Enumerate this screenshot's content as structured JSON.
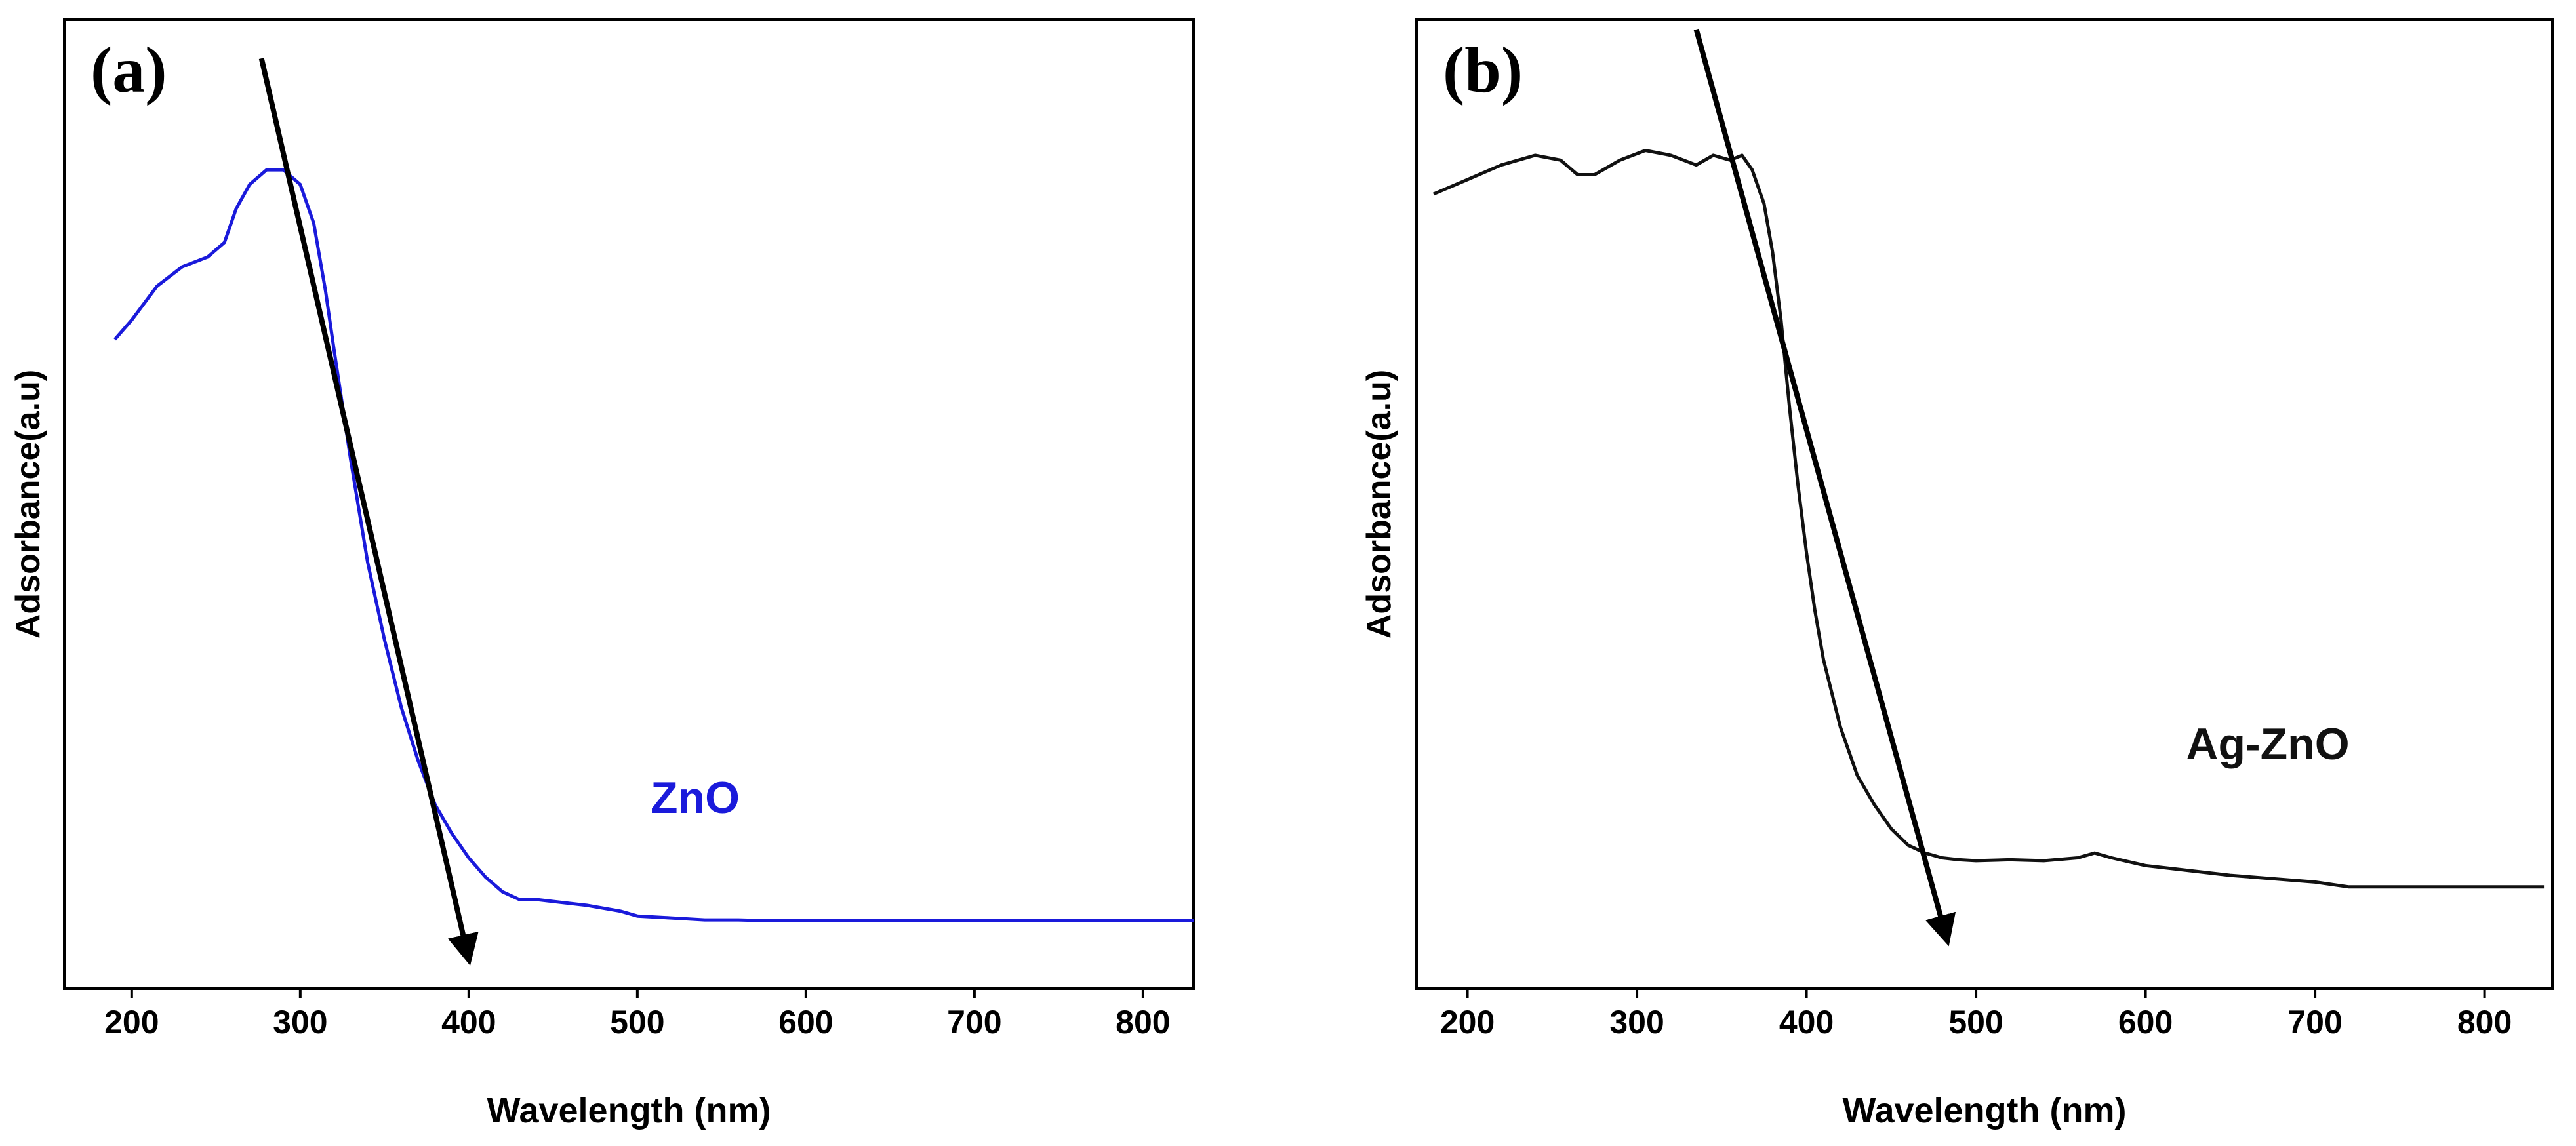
{
  "chart_data": [
    {
      "panel_label": "(a)",
      "type": "line",
      "xlabel": "Wavelength (nm)",
      "ylabel": "Adsorbance(a.u)",
      "xlim": [
        160,
        830
      ],
      "ylim": [
        0,
        1
      ],
      "xticks": [
        200,
        300,
        400,
        500,
        600,
        700,
        800
      ],
      "series": [
        {
          "name": "ZnO",
          "color": "#1a1adb",
          "x": [
            190,
            200,
            215,
            230,
            245,
            255,
            262,
            270,
            280,
            290,
            300,
            308,
            315,
            320,
            330,
            340,
            350,
            360,
            370,
            380,
            390,
            400,
            410,
            420,
            430,
            440,
            450,
            470,
            490,
            500,
            520,
            540,
            560,
            580,
            600,
            650,
            700,
            750,
            800,
            830
          ],
          "y": [
            0.67,
            0.69,
            0.725,
            0.745,
            0.755,
            0.77,
            0.805,
            0.83,
            0.845,
            0.845,
            0.83,
            0.79,
            0.72,
            0.66,
            0.545,
            0.44,
            0.36,
            0.29,
            0.235,
            0.19,
            0.16,
            0.135,
            0.115,
            0.1,
            0.092,
            0.092,
            0.09,
            0.086,
            0.08,
            0.075,
            0.073,
            0.071,
            0.071,
            0.07,
            0.07,
            0.07,
            0.07,
            0.07,
            0.07,
            0.07
          ]
        }
      ],
      "arrow": {
        "from": [
          277,
          0.96
        ],
        "to": [
          400,
          0.03
        ]
      }
    },
    {
      "panel_label": "(b)",
      "type": "line",
      "xlabel": "Wavelength (nm)",
      "ylabel": "Adsorbance(a.u)",
      "xlim": [
        170,
        840
      ],
      "ylim": [
        0,
        1
      ],
      "xticks": [
        200,
        300,
        400,
        500,
        600,
        700,
        800
      ],
      "series": [
        {
          "name": "Ag-ZnO",
          "color": "#111111",
          "x": [
            180,
            200,
            220,
            240,
            255,
            265,
            275,
            290,
            305,
            320,
            335,
            345,
            355,
            362,
            368,
            375,
            380,
            385,
            390,
            395,
            400,
            405,
            410,
            420,
            430,
            440,
            450,
            460,
            470,
            480,
            490,
            500,
            520,
            540,
            560,
            570,
            580,
            600,
            650,
            700,
            720,
            760,
            800,
            835
          ],
          "y": [
            0.82,
            0.835,
            0.85,
            0.86,
            0.855,
            0.84,
            0.84,
            0.855,
            0.865,
            0.86,
            0.85,
            0.86,
            0.855,
            0.86,
            0.845,
            0.81,
            0.76,
            0.69,
            0.6,
            0.52,
            0.45,
            0.39,
            0.34,
            0.27,
            0.22,
            0.19,
            0.165,
            0.148,
            0.14,
            0.135,
            0.133,
            0.132,
            0.133,
            0.132,
            0.135,
            0.14,
            0.135,
            0.127,
            0.117,
            0.11,
            0.105,
            0.105,
            0.105,
            0.105
          ]
        }
      ],
      "arrow": {
        "from": [
          335,
          0.99
        ],
        "to": [
          483,
          0.05
        ]
      }
    }
  ]
}
